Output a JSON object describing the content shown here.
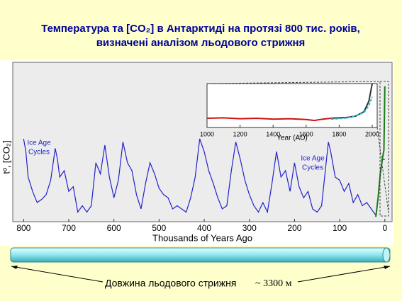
{
  "title": [
    "Температура та [CO₂] в Антарктиді на протязі 800 тис. років,",
    "визначені аналізом льодового стрижня"
  ],
  "caption": [
    "Довжина льодового стрижня",
    "~ 3300 м"
  ],
  "chart_data": [
    {
      "type": "line",
      "xlabel": "Thousands of Years Ago",
      "ylabel": "tº, [CO₂]",
      "annotations": [
        [
          "Ice Age",
          "Cycles"
        ],
        [
          "Ice Age",
          "Cycles"
        ]
      ],
      "xlim": [
        824,
        -16
      ],
      "ylim": [
        0,
        100
      ],
      "xticks": [
        800,
        700,
        600,
        500,
        400,
        300,
        200,
        100,
        0
      ],
      "series": [
        {
          "color": "#2222cc",
          "x": [
            800,
            795,
            790,
            780,
            770,
            760,
            750,
            740,
            730,
            725,
            720,
            710,
            700,
            690,
            680,
            670,
            660,
            650,
            640,
            630,
            620,
            610,
            600,
            590,
            580,
            570,
            560,
            550,
            540,
            530,
            520,
            510,
            500,
            490,
            480,
            470,
            460,
            450,
            440,
            430,
            420,
            410,
            400,
            390,
            380,
            370,
            360,
            350,
            340,
            330,
            320,
            310,
            300,
            290,
            280,
            270,
            260,
            250,
            240,
            230,
            220,
            210,
            200,
            190,
            180,
            170,
            160,
            150,
            140,
            130,
            125,
            120,
            110,
            100,
            90,
            80,
            70,
            60,
            50,
            40,
            30,
            20,
            15,
            10,
            5,
            0
          ],
          "values": [
            52,
            44,
            28,
            19,
            12,
            14,
            17,
            26,
            46,
            39,
            28,
            32,
            19,
            22,
            6,
            10,
            6,
            10,
            37,
            30,
            48,
            28,
            15,
            26,
            50,
            37,
            32,
            17,
            8,
            24,
            37,
            30,
            21,
            17,
            15,
            8,
            10,
            8,
            6,
            15,
            28,
            52,
            44,
            32,
            24,
            15,
            8,
            10,
            32,
            50,
            39,
            26,
            17,
            10,
            6,
            12,
            6,
            24,
            44,
            28,
            32,
            19,
            37,
            22,
            15,
            19,
            8,
            6,
            10,
            37,
            50,
            44,
            28,
            26,
            19,
            24,
            12,
            17,
            10,
            12,
            8,
            4,
            15,
            32,
            39,
            39
          ]
        },
        {
          "color": "#1a7a1a",
          "x": [
            20,
            15,
            10,
            5,
            2,
            0
          ],
          "values": [
            3,
            15,
            30,
            40,
            45,
            85
          ]
        }
      ]
    },
    {
      "type": "line",
      "xlabel": "Year (AD)",
      "xlim": [
        1000,
        2030
      ],
      "ylim": [
        0,
        100
      ],
      "xticks": [
        1000,
        1200,
        1400,
        1600,
        1800,
        2000
      ],
      "series": [
        {
          "color": "#cc1111",
          "x": [
            1000,
            1100,
            1200,
            1300,
            1400,
            1500,
            1600,
            1650,
            1700,
            1750
          ],
          "values": [
            21,
            22,
            20,
            21,
            19,
            20,
            18,
            16,
            19,
            21
          ]
        },
        {
          "color": "#333333",
          "x": [
            1750,
            1800,
            1850,
            1900,
            1950,
            1980,
            2000
          ],
          "values": [
            21,
            22,
            23,
            26,
            36,
            60,
            100
          ]
        },
        {
          "color": "#33bbcc",
          "dashed": true,
          "x": [
            1750,
            1800,
            1850,
            1900,
            1950,
            1980,
            2000
          ],
          "values": [
            19,
            20,
            22,
            27,
            34,
            50,
            70
          ]
        }
      ]
    }
  ]
}
